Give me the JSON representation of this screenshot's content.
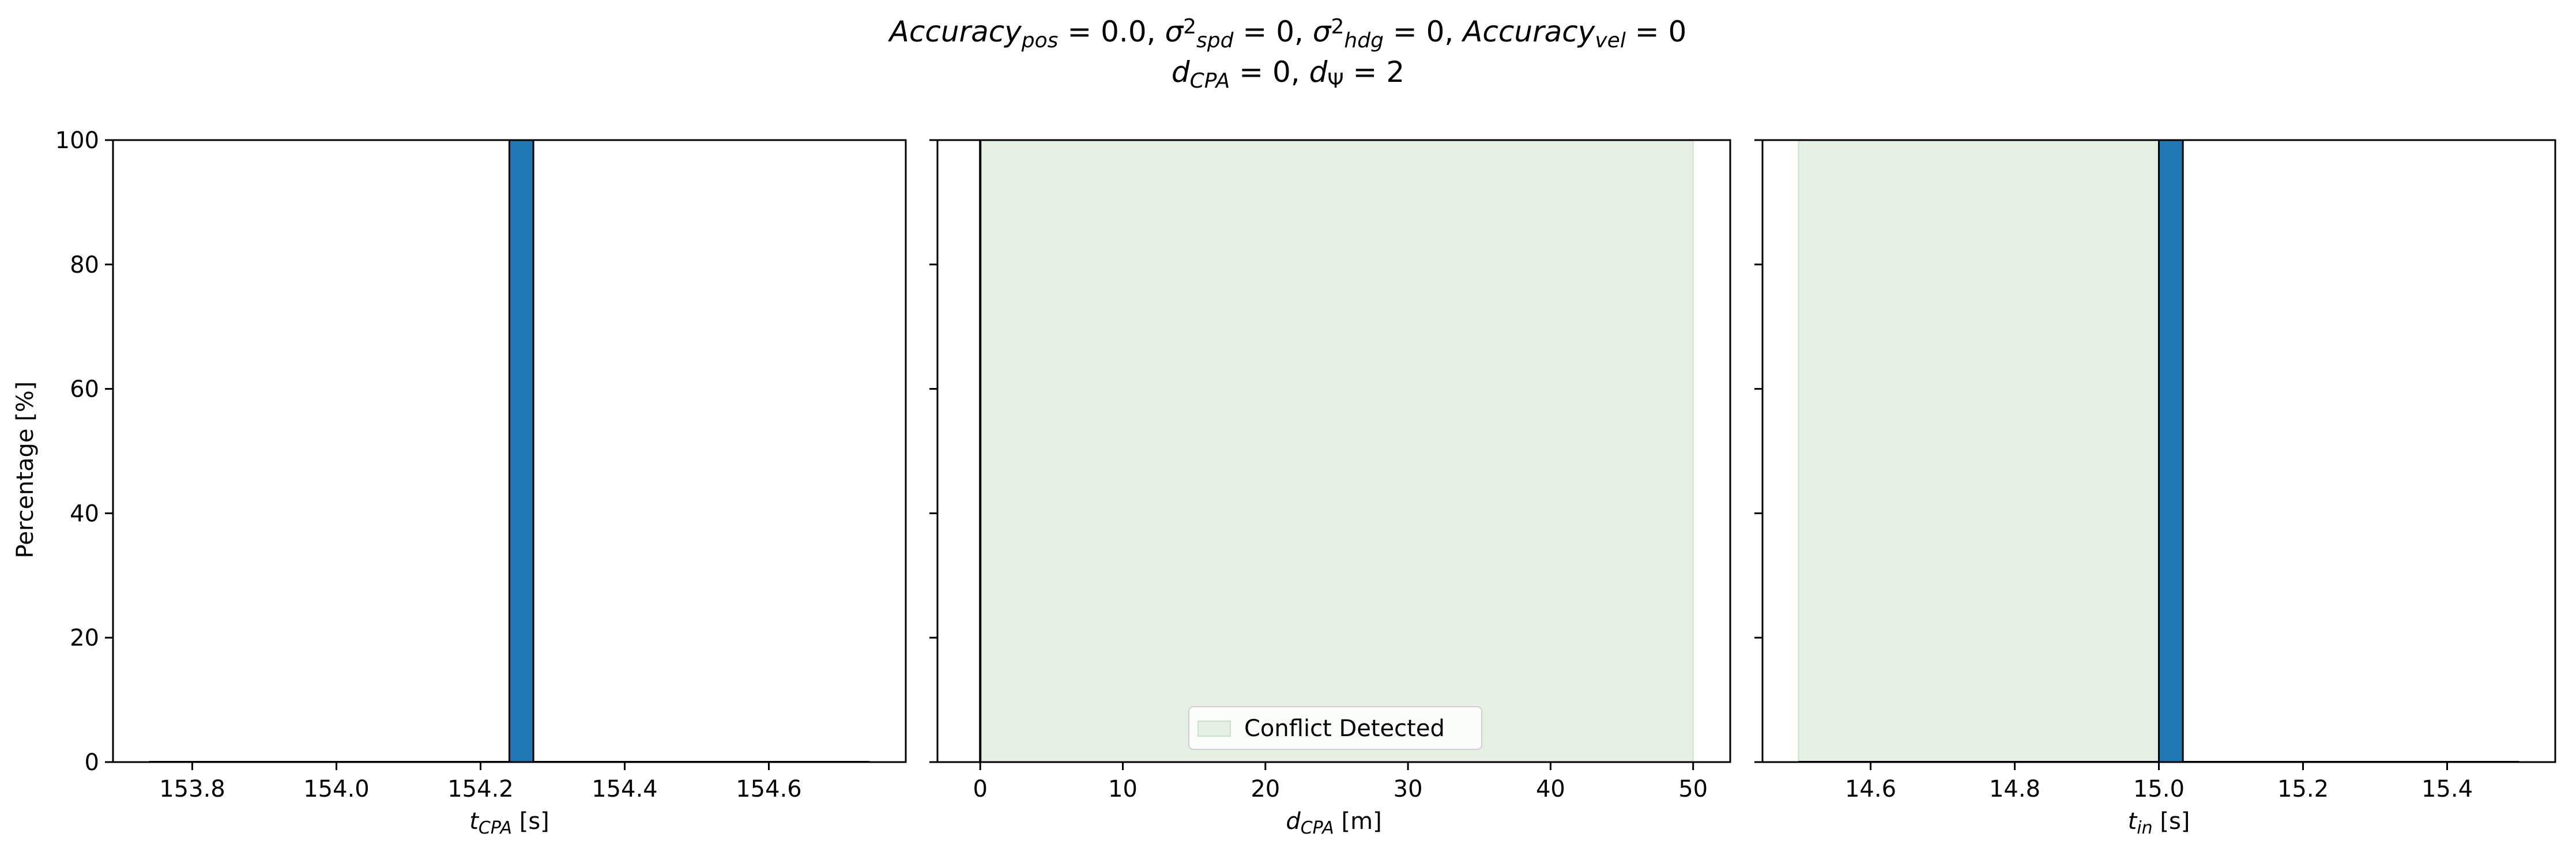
{
  "figure": {
    "title_line1": [
      {
        "t": "Accuracy",
        "it": true
      },
      {
        "t": "pos",
        "sub": true,
        "it": true
      },
      {
        "t": " = 0.0, "
      },
      {
        "t": "σ",
        "it": true
      },
      {
        "t": "2",
        "sup": true
      },
      {
        "t": "spd",
        "sub": true,
        "it": true
      },
      {
        "t": " = 0, "
      },
      {
        "t": "σ",
        "it": true
      },
      {
        "t": "2",
        "sup": true
      },
      {
        "t": "hdg",
        "sub": true,
        "it": true
      },
      {
        "t": " = 0, "
      },
      {
        "t": "Accuracy",
        "it": true
      },
      {
        "t": "vel",
        "sub": true,
        "it": true
      },
      {
        "t": " = 0"
      }
    ],
    "title_line2": [
      {
        "t": "d",
        "it": true
      },
      {
        "t": "CPA",
        "sub": true,
        "it": true
      },
      {
        "t": " = 0, "
      },
      {
        "t": "d",
        "it": true
      },
      {
        "t": "Ψ",
        "sub": true
      },
      {
        "t": " = 2"
      }
    ]
  },
  "chart_data": [
    {
      "type": "bar",
      "ylabel": "Percentage [%]",
      "xlabel": [
        {
          "t": "t",
          "it": true
        },
        {
          "t": "CPA",
          "sub": true,
          "it": true
        },
        {
          "t": " [s]"
        }
      ],
      "xlim": [
        153.69,
        154.79
      ],
      "ylim": [
        0,
        100
      ],
      "xticks": [
        153.8,
        154.0,
        154.2,
        154.4,
        154.6
      ],
      "xtick_labels": [
        "153.8",
        "154.0",
        "154.2",
        "154.4",
        "154.6"
      ],
      "yticks": [
        0,
        20,
        40,
        60,
        80,
        100
      ],
      "ytick_labels": [
        "0",
        "20",
        "40",
        "60",
        "80",
        "100"
      ],
      "bins": {
        "start": 153.74,
        "end": 154.74,
        "count": 30
      },
      "bars": [
        {
          "x0": 154.24,
          "x1": 154.2733,
          "value": 100
        }
      ],
      "bar_color": "#1f77b4"
    },
    {
      "type": "bar",
      "ylabel": "",
      "xlabel": [
        {
          "t": "d",
          "it": true
        },
        {
          "t": "CPA",
          "sub": true,
          "it": true
        },
        {
          "t": " [m]"
        }
      ],
      "xlim": [
        -3.0,
        52.6
      ],
      "ylim": [
        0,
        100
      ],
      "xticks": [
        0,
        10,
        20,
        30,
        40,
        50
      ],
      "xtick_labels": [
        "0",
        "10",
        "20",
        "30",
        "40",
        "50"
      ],
      "yticks": [
        0,
        20,
        40,
        60,
        80,
        100
      ],
      "bars": [
        {
          "x0": 0.0,
          "x1": 0.04,
          "value": 100
        }
      ],
      "bar_color": "#1f77b4",
      "shaded_region": {
        "x0": 0,
        "x1": 50,
        "color": "#e5f0e5",
        "edge": "#c9e2c9",
        "label": "Conflict Detected"
      },
      "legend_position": "lower center"
    },
    {
      "type": "bar",
      "ylabel": "",
      "xlabel": [
        {
          "t": "t",
          "it": true
        },
        {
          "t": "in",
          "sub": true,
          "it": true
        },
        {
          "t": " [s]"
        }
      ],
      "xlim": [
        14.45,
        15.55
      ],
      "ylim": [
        0,
        100
      ],
      "xticks": [
        14.6,
        14.8,
        15.0,
        15.2,
        15.4
      ],
      "xtick_labels": [
        "14.6",
        "14.8",
        "15.0",
        "15.2",
        "15.4"
      ],
      "yticks": [
        0,
        20,
        40,
        60,
        80,
        100
      ],
      "bins": {
        "start": 14.5,
        "end": 15.5,
        "count": 30
      },
      "bars": [
        {
          "x0": 15.0,
          "x1": 15.0333,
          "value": 100
        }
      ],
      "bar_color": "#1f77b4",
      "shaded_region": {
        "x0": 14.5,
        "x1": 15.0,
        "color": "#e5f0e5",
        "edge": "#c9e2c9"
      }
    }
  ]
}
